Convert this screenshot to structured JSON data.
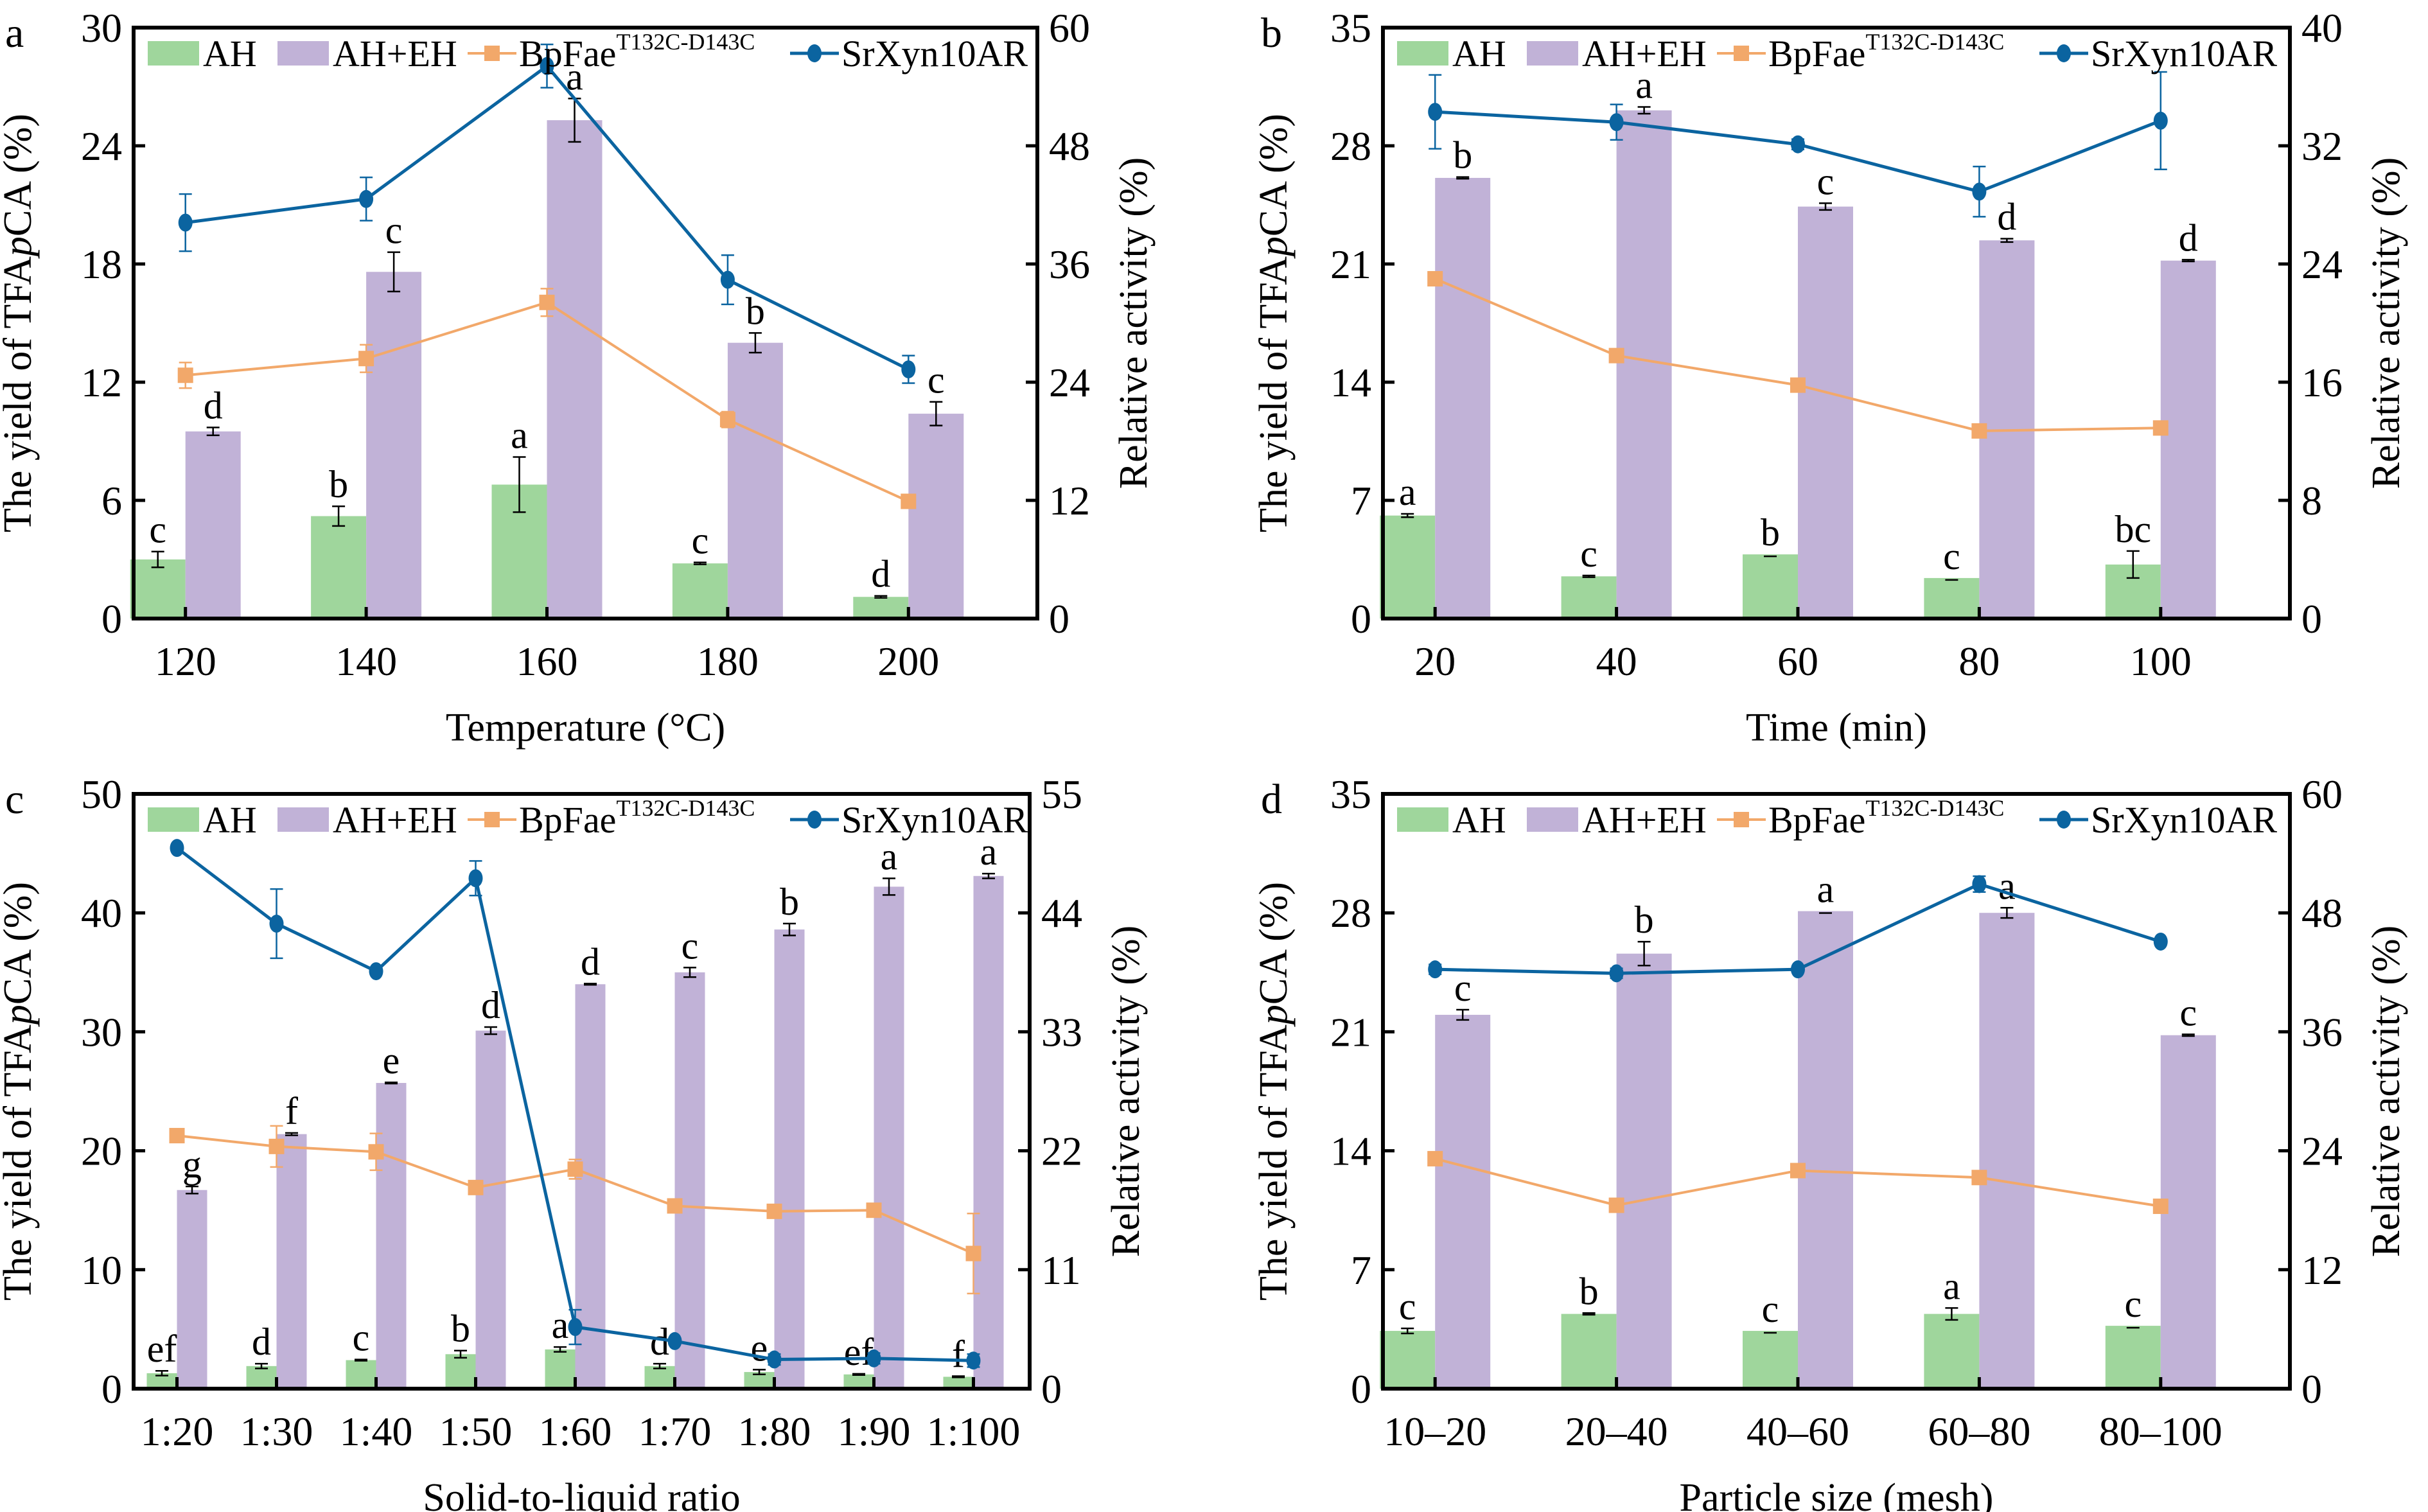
{
  "figure": {
    "colors": {
      "AH": "#9fd69c",
      "AH+EH": "#c1b2d7",
      "BpFae": "#f2a86a",
      "SrXyn": "#0b64a0"
    },
    "legend": {
      "ah": "AH",
      "ah_eh": "AH+EH",
      "bpfae_base": "BpFae",
      "bpfae_sup": "T132C-D143C",
      "srxyn": "SrXyn10AR"
    }
  },
  "chart_data": [
    {
      "panel": "a",
      "type": "bar",
      "xlabel": "Temperature (°C)",
      "ylabel_left_parts": [
        "The yield of TFA",
        "p",
        "CA (%)"
      ],
      "ylabel_right": "Relative activity (%)",
      "categories": [
        "120",
        "140",
        "160",
        "180",
        "200"
      ],
      "ylim_left": [
        0,
        30
      ],
      "yticks_left": [
        "0",
        "6",
        "12",
        "18",
        "24",
        "30"
      ],
      "ylim_right": [
        0,
        60
      ],
      "yticks_right": [
        "0",
        "12",
        "24",
        "36",
        "48",
        "60"
      ],
      "legend_position": "top",
      "series": [
        {
          "name": "AH",
          "type": "bar",
          "axis": "left",
          "values": [
            3.0,
            5.2,
            6.8,
            2.8,
            1.1
          ],
          "errors": [
            0.4,
            0.5,
            1.4,
            0.05,
            0.05
          ],
          "letters": [
            "c",
            "b",
            "a",
            "c",
            "d"
          ]
        },
        {
          "name": "AH+EH",
          "type": "bar",
          "axis": "left",
          "values": [
            9.5,
            17.6,
            25.3,
            14.0,
            10.4
          ],
          "errors": [
            0.2,
            1.0,
            1.1,
            0.5,
            0.6
          ],
          "letters": [
            "d",
            "c",
            "a",
            "b",
            "c"
          ]
        },
        {
          "name": "BpFae T132C-D143C",
          "type": "line",
          "axis": "right",
          "values": [
            24.7,
            26.4,
            32.1,
            20.2,
            11.9
          ],
          "errors": [
            1.3,
            1.4,
            1.4,
            0.8,
            0.2
          ]
        },
        {
          "name": "SrXyn10AR",
          "type": "line",
          "axis": "right",
          "values": [
            40.2,
            42.6,
            56.1,
            34.4,
            25.3
          ],
          "errors": [
            2.9,
            2.2,
            2.2,
            2.5,
            1.4
          ]
        }
      ]
    },
    {
      "panel": "b",
      "type": "bar",
      "xlabel": "Time (min)",
      "ylabel_left_parts": [
        "The yield of TFA",
        "p",
        "CA (%)"
      ],
      "ylabel_right": "Relative activity (%)",
      "categories": [
        "20",
        "40",
        "60",
        "80",
        "100"
      ],
      "ylim_left": [
        0,
        35
      ],
      "yticks_left": [
        "0",
        "7",
        "14",
        "21",
        "28",
        "35"
      ],
      "ylim_right": [
        0,
        40
      ],
      "yticks_right": [
        "0",
        "8",
        "16",
        "24",
        "32",
        "40"
      ],
      "legend_position": "top",
      "series": [
        {
          "name": "AH",
          "type": "bar",
          "axis": "left",
          "values": [
            6.1,
            2.5,
            3.8,
            2.4,
            3.2
          ],
          "errors": [
            0.1,
            0.05,
            0.0,
            0.0,
            0.8
          ],
          "letters": [
            "a",
            "c",
            "b",
            "c",
            "bc"
          ]
        },
        {
          "name": "AH+EH",
          "type": "bar",
          "axis": "left",
          "values": [
            26.1,
            30.1,
            24.4,
            22.4,
            21.2
          ],
          "errors": [
            0.05,
            0.2,
            0.2,
            0.1,
            0.05
          ],
          "letters": [
            "b",
            "a",
            "c",
            "d",
            "d"
          ]
        },
        {
          "name": "BpFae T132C-D143C",
          "type": "line",
          "axis": "right",
          "values": [
            23.0,
            17.8,
            15.8,
            12.7,
            12.9
          ],
          "errors": [
            0.0,
            0.0,
            0.0,
            0.0,
            0.0
          ]
        },
        {
          "name": "SrXyn10AR",
          "type": "line",
          "axis": "right",
          "values": [
            34.3,
            33.6,
            32.1,
            28.9,
            33.7
          ],
          "errors": [
            2.5,
            1.2,
            0.35,
            1.7,
            3.3
          ]
        }
      ]
    },
    {
      "panel": "c",
      "type": "bar",
      "xlabel": "Solid-to-liquid ratio",
      "ylabel_left_parts": [
        "The yield of TFA",
        "p",
        "CA (%)"
      ],
      "ylabel_right": "Relative activity (%)",
      "categories": [
        "1:20",
        "1:30",
        "1:40",
        "1:50",
        "1:60",
        "1:70",
        "1:80",
        "1:90",
        "1:100"
      ],
      "ylim_left": [
        0,
        50
      ],
      "yticks_left": [
        "0",
        "10",
        "20",
        "30",
        "40",
        "50"
      ],
      "ylim_right": [
        0,
        55
      ],
      "yticks_right": [
        "0",
        "11",
        "22",
        "33",
        "44",
        "55"
      ],
      "legend_position": "top",
      "series": [
        {
          "name": "AH",
          "type": "bar",
          "axis": "left",
          "values": [
            1.3,
            1.9,
            2.4,
            2.9,
            3.3,
            1.9,
            1.4,
            1.2,
            1.0
          ],
          "errors": [
            0.2,
            0.2,
            0.05,
            0.3,
            0.2,
            0.2,
            0.2,
            0.05,
            0.05
          ],
          "letters": [
            "ef",
            "d",
            "c",
            "b",
            "a",
            "d",
            "e",
            "ef",
            "f"
          ]
        },
        {
          "name": "AH+EH",
          "type": "bar",
          "axis": "left",
          "values": [
            16.7,
            21.4,
            25.7,
            30.1,
            34.0,
            35.0,
            38.6,
            42.2,
            43.1
          ],
          "errors": [
            0.3,
            0.1,
            0.05,
            0.3,
            0.05,
            0.4,
            0.5,
            0.7,
            0.2
          ],
          "letters": [
            "g",
            "f",
            "e",
            "d",
            "d",
            "c",
            "b",
            "a",
            "a"
          ]
        },
        {
          "name": "BpFae T132C-D143C",
          "type": "line",
          "axis": "right",
          "values": [
            23.4,
            22.4,
            21.9,
            18.6,
            20.3,
            16.9,
            16.4,
            16.5,
            12.5
          ],
          "errors": [
            0.0,
            1.9,
            1.7,
            0.0,
            0.9,
            0.0,
            0.0,
            0.0,
            3.7
          ]
        },
        {
          "name": "SrXyn10AR",
          "type": "line",
          "axis": "right",
          "values": [
            50.0,
            43.0,
            38.6,
            47.2,
            5.7,
            4.4,
            2.7,
            2.8,
            2.6
          ],
          "errors": [
            0.0,
            3.2,
            0.0,
            1.6,
            1.6,
            0.0,
            0.5,
            0.5,
            0.6
          ],
          "letters_note": "panel c letters shown on AH bars"
        }
      ]
    },
    {
      "panel": "d",
      "type": "bar",
      "xlabel": "Particle size (mesh)",
      "ylabel_left_parts": [
        "The yield of TFA",
        "p",
        "CA (%)"
      ],
      "ylabel_right": "Relative activity (%)",
      "categories": [
        "10–20",
        "20–40",
        "40–60",
        "60–80",
        "80–100"
      ],
      "ylim_left": [
        0,
        35
      ],
      "yticks_left": [
        "0",
        "7",
        "14",
        "21",
        "28",
        "35"
      ],
      "ylim_right": [
        0,
        60
      ],
      "yticks_right": [
        "0",
        "12",
        "24",
        "36",
        "48",
        "60"
      ],
      "legend_position": "top",
      "series": [
        {
          "name": "AH",
          "type": "bar",
          "axis": "left",
          "values": [
            3.4,
            4.4,
            3.4,
            4.4,
            3.7
          ],
          "errors": [
            0.15,
            0.05,
            0.0,
            0.35,
            0.0
          ],
          "letters": [
            "c",
            "b",
            "c",
            "a",
            "c"
          ]
        },
        {
          "name": "AH+EH",
          "type": "bar",
          "axis": "left",
          "values": [
            22.0,
            25.6,
            28.1,
            28.0,
            20.8
          ],
          "errors": [
            0.3,
            0.7,
            0.0,
            0.3,
            0.05
          ],
          "letters": [
            "c",
            "b",
            "a",
            "a",
            "c"
          ]
        },
        {
          "name": "BpFae T132C-D143C",
          "type": "line",
          "axis": "right",
          "values": [
            23.2,
            18.5,
            22.0,
            21.3,
            18.4
          ],
          "errors": [
            0.0,
            0.0,
            0.0,
            0.0,
            0.0
          ]
        },
        {
          "name": "SrXyn10AR",
          "type": "line",
          "axis": "right",
          "values": [
            42.3,
            41.9,
            42.3,
            50.9,
            45.1
          ],
          "errors": [
            0.5,
            0.5,
            0.0,
            0.8,
            0.0
          ]
        }
      ]
    }
  ]
}
